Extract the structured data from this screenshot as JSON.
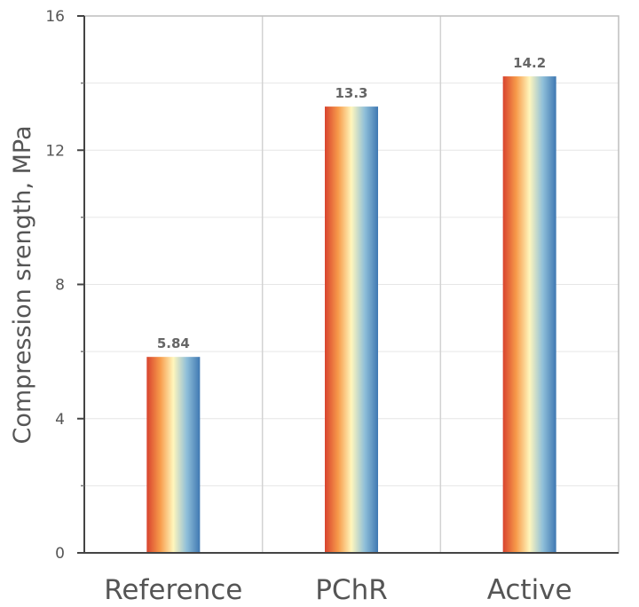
{
  "chart_data": {
    "type": "bar",
    "categories": [
      "Reference",
      "PChR",
      "Active"
    ],
    "values": [
      5.84,
      13.3,
      14.2
    ],
    "data_labels": [
      "5.84",
      "13.3",
      "14.2"
    ],
    "ylabel": "Compression srength, MPa",
    "ylim": [
      0,
      16
    ],
    "yticks": [
      0,
      4,
      8,
      12,
      16
    ],
    "grid": true,
    "bar_gradient": [
      "#d8432e",
      "#f79a4a",
      "#fff6bc",
      "#8fbfd9",
      "#3f78b2"
    ]
  }
}
